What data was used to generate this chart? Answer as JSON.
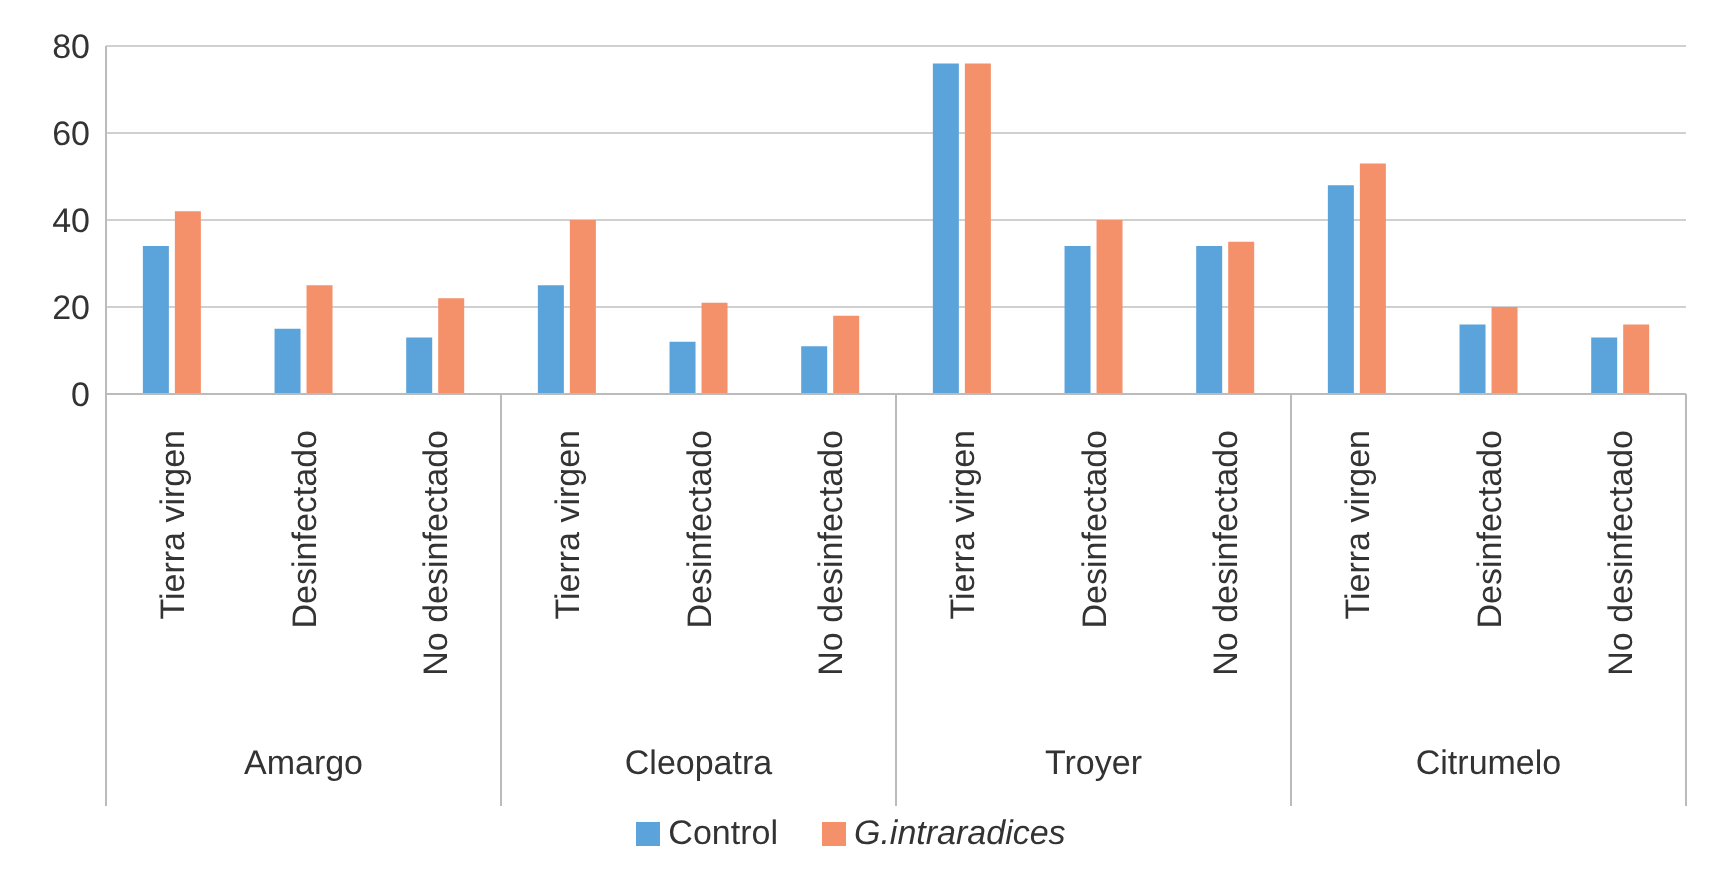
{
  "chart_data": {
    "type": "bar",
    "categories": [
      "Tierra virgen",
      "Desinfectado",
      "No desinfectado",
      "Tierra virgen",
      "Desinfectado",
      "No desinfectado",
      "Tierra virgen",
      "Desinfectado",
      "No desinfectado",
      "Tierra virgen",
      "Desinfectado",
      "No desinfectado"
    ],
    "series": [
      {
        "name": "Control",
        "color": "#5ba3db",
        "values": [
          34,
          15,
          13,
          25,
          12,
          11,
          76,
          34,
          34,
          48,
          16,
          13
        ]
      },
      {
        "name": "G.intraradices",
        "color": "#f4906a",
        "values": [
          42,
          25,
          22,
          40,
          21,
          18,
          76,
          40,
          35,
          53,
          20,
          16
        ]
      }
    ],
    "annotations": [
      "Amargo",
      "Cleopatra",
      "Troyer",
      "Citrumelo"
    ],
    "ylim": [
      0,
      80
    ],
    "yticks": [
      0,
      20,
      40,
      60,
      80
    ],
    "grid": "y",
    "legend": "bottom"
  }
}
